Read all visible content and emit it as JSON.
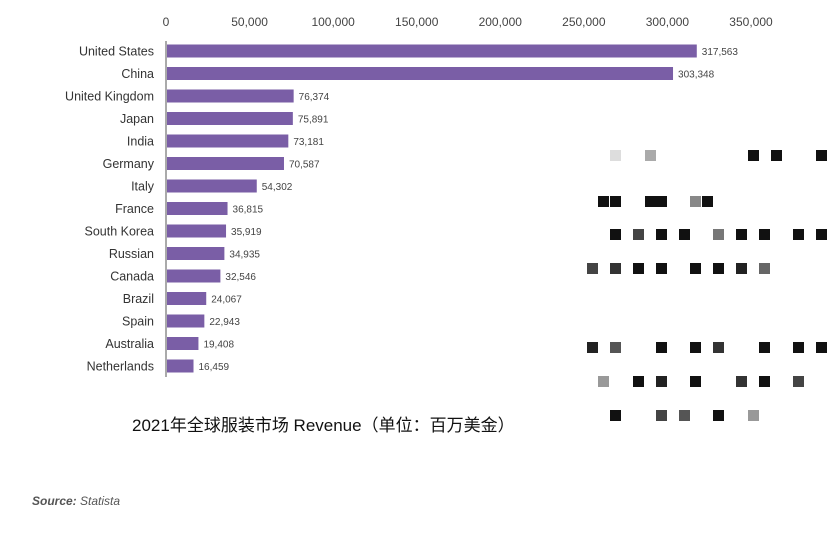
{
  "chart_data": {
    "type": "bar",
    "orientation": "horizontal",
    "title": "2021年全球服装市场 Revenue（单位：百万美金）",
    "categories": [
      "United States",
      "China",
      "United Kingdom",
      "Japan",
      "India",
      "Germany",
      "Italy",
      "France",
      "South Korea",
      "Russian",
      "Canada",
      "Brazil",
      "Spain",
      "Australia",
      "Netherlands"
    ],
    "values": [
      317563,
      303348,
      76374,
      75891,
      73181,
      70587,
      54302,
      36815,
      35919,
      34935,
      32546,
      24067,
      22943,
      19408,
      16459
    ],
    "value_labels": [
      "317,563",
      "303,348",
      "76,374",
      "75,891",
      "73,181",
      "70,587",
      "54,302",
      "36,815",
      "35,919",
      "34,935",
      "32,546",
      "24,067",
      "22,943",
      "19,408",
      "16,459"
    ],
    "xticks": [
      "0",
      "50,000",
      "100,000",
      "150,000",
      "200,000",
      "250,000",
      "300,000",
      "350,000"
    ],
    "xlim": [
      0,
      350000
    ],
    "grid": false,
    "bar_color": "#7a5ea6"
  },
  "source": {
    "label": "Source:",
    "value": "Statista"
  }
}
